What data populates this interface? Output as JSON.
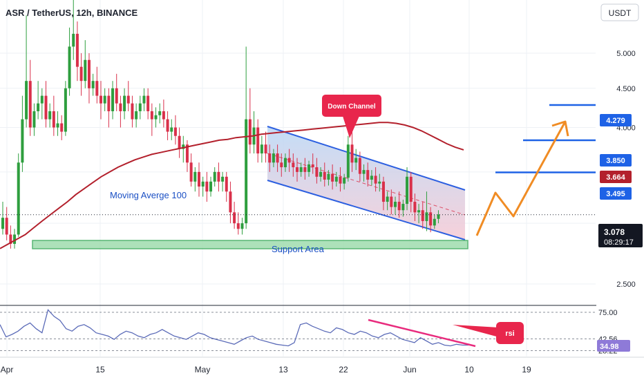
{
  "header": {
    "symbol_title": "ASR / TetherUS, 12h, BINANCE",
    "currency_button": "USDT"
  },
  "colors": {
    "background": "#ffffff",
    "grid": "#eef1f5",
    "candle_up": "#2e9e3e",
    "candle_down": "#d9304a",
    "ma_line": "#b3202c",
    "channel_line": "#2c5fe0",
    "channel_fill_top": "#b9d7f5",
    "channel_fill_bottom": "#f5c9d4",
    "support_fill": "#9fdcae",
    "support_border": "#3caa5c",
    "resistance_line": "#1e62e6",
    "projection": "#f08c24",
    "callout": "#e8264c",
    "rsi_line": "#5b6bb8",
    "rsi_trend": "#e82b7d"
  },
  "annotations": {
    "ma_label": "Moving Averge 100",
    "channel_label": "Down Channel",
    "support_label": "Support Area",
    "rsi_label": "rsi"
  },
  "price_axis": {
    "ticks": [
      "5.000",
      "4.500",
      "4.000",
      "2.500"
    ],
    "badges": {
      "r1": "4.279",
      "r2": "3.850",
      "ma": "3.664",
      "r3": "3.495",
      "last_price": "3.078",
      "countdown": "08:29:17"
    }
  },
  "rsi_axis": {
    "ticks": [
      "75.00",
      "42.56",
      "28.22"
    ],
    "current": "34.98"
  },
  "time_axis": {
    "ticks": [
      "Apr",
      "15",
      "May",
      "13",
      "22",
      "Jun",
      "10",
      "19"
    ]
  },
  "chart_data": {
    "type": "candlestick",
    "title": "ASR / TetherUS, 12h, BINANCE",
    "interval": "12h",
    "y_scale": "log",
    "ylim": [
      2.2,
      6.0
    ],
    "candles": [
      [
        2.95,
        3.2,
        3.05,
        2.9
      ],
      [
        3.05,
        3.15,
        2.9,
        2.85
      ],
      [
        2.9,
        2.98,
        2.82,
        2.78
      ],
      [
        2.82,
        2.95,
        2.9,
        2.78
      ],
      [
        2.9,
        3.7,
        3.6,
        2.88
      ],
      [
        3.6,
        4.4,
        4.1,
        3.5
      ],
      [
        4.1,
        5.6,
        4.6,
        4.0
      ],
      [
        4.6,
        4.9,
        4.0,
        3.9
      ],
      [
        4.0,
        4.3,
        4.2,
        3.9
      ],
      [
        4.2,
        4.6,
        4.3,
        4.1
      ],
      [
        4.3,
        4.5,
        4.4,
        4.1
      ],
      [
        4.4,
        4.6,
        4.1,
        4.0
      ],
      [
        4.1,
        4.3,
        4.2,
        4.0
      ],
      [
        4.2,
        4.4,
        4.0,
        3.9
      ],
      [
        4.0,
        4.2,
        4.05,
        3.9
      ],
      [
        4.05,
        4.15,
        3.95,
        3.85
      ],
      [
        3.95,
        4.6,
        4.5,
        3.9
      ],
      [
        4.5,
        5.4,
        5.1,
        4.4
      ],
      [
        5.1,
        6.0,
        5.3,
        4.9
      ],
      [
        5.3,
        5.5,
        4.8,
        4.6
      ],
      [
        4.8,
        5.0,
        4.6,
        4.4
      ],
      [
        4.6,
        5.2,
        4.9,
        4.5
      ],
      [
        4.9,
        5.0,
        4.5,
        4.3
      ],
      [
        4.5,
        4.7,
        4.6,
        4.4
      ],
      [
        4.6,
        4.8,
        4.4,
        4.3
      ],
      [
        4.4,
        4.6,
        4.3,
        4.1
      ],
      [
        4.3,
        4.5,
        4.4,
        4.2
      ],
      [
        4.4,
        4.5,
        4.2,
        4.0
      ],
      [
        4.2,
        4.6,
        4.5,
        4.1
      ],
      [
        4.5,
        4.7,
        4.3,
        4.2
      ],
      [
        4.3,
        4.4,
        4.2,
        4.0
      ],
      [
        4.2,
        4.5,
        4.4,
        4.1
      ],
      [
        4.4,
        4.6,
        4.3,
        4.2
      ],
      [
        4.3,
        4.4,
        4.1,
        4.0
      ],
      [
        4.1,
        4.3,
        4.2,
        4.0
      ],
      [
        4.2,
        4.4,
        4.3,
        4.1
      ],
      [
        4.3,
        4.5,
        4.4,
        4.2
      ],
      [
        4.4,
        4.5,
        4.2,
        4.1
      ],
      [
        4.2,
        4.3,
        4.1,
        3.9
      ],
      [
        4.1,
        4.25,
        4.15,
        4.0
      ],
      [
        4.15,
        4.3,
        4.2,
        4.05
      ],
      [
        4.2,
        4.35,
        4.1,
        4.0
      ],
      [
        4.1,
        4.2,
        3.95,
        3.85
      ],
      [
        3.95,
        4.1,
        4.0,
        3.85
      ],
      [
        4.0,
        4.15,
        3.9,
        3.8
      ],
      [
        3.9,
        4.0,
        3.75,
        3.65
      ],
      [
        3.75,
        3.9,
        3.8,
        3.6
      ],
      [
        3.8,
        3.85,
        3.6,
        3.5
      ],
      [
        3.6,
        3.7,
        3.4,
        3.35
      ],
      [
        3.4,
        3.55,
        3.5,
        3.3
      ],
      [
        3.5,
        3.6,
        3.35,
        3.25
      ],
      [
        3.35,
        3.45,
        3.4,
        3.25
      ],
      [
        3.4,
        3.5,
        3.3,
        3.2
      ],
      [
        3.3,
        3.45,
        3.4,
        3.25
      ],
      [
        3.4,
        3.55,
        3.5,
        3.35
      ],
      [
        3.5,
        3.6,
        3.4,
        3.3
      ],
      [
        3.4,
        3.5,
        3.45,
        3.3
      ],
      [
        3.45,
        3.5,
        3.3,
        3.2
      ],
      [
        3.3,
        3.4,
        3.1,
        3.0
      ],
      [
        3.1,
        3.2,
        3.0,
        2.95
      ],
      [
        3.0,
        3.1,
        2.95,
        2.9
      ],
      [
        2.95,
        3.05,
        3.0,
        2.9
      ],
      [
        3.0,
        5.1,
        4.1,
        2.95
      ],
      [
        4.1,
        4.5,
        3.8,
        3.7
      ],
      [
        3.8,
        4.2,
        4.0,
        3.7
      ],
      [
        4.0,
        4.1,
        3.7,
        3.6
      ],
      [
        3.7,
        3.9,
        3.8,
        3.6
      ],
      [
        3.8,
        3.95,
        3.7,
        3.6
      ],
      [
        3.7,
        3.8,
        3.6,
        3.5
      ],
      [
        3.6,
        3.75,
        3.7,
        3.55
      ],
      [
        3.7,
        3.8,
        3.6,
        3.5
      ],
      [
        3.6,
        3.7,
        3.55,
        3.45
      ],
      [
        3.55,
        3.7,
        3.65,
        3.5
      ],
      [
        3.65,
        3.75,
        3.6,
        3.5
      ],
      [
        3.6,
        3.7,
        3.55,
        3.45
      ],
      [
        3.55,
        3.65,
        3.5,
        3.4
      ],
      [
        3.5,
        3.6,
        3.55,
        3.45
      ],
      [
        3.55,
        3.65,
        3.5,
        3.42
      ],
      [
        3.5,
        3.62,
        3.58,
        3.45
      ],
      [
        3.58,
        3.7,
        3.55,
        3.48
      ],
      [
        3.55,
        3.65,
        3.45,
        3.38
      ],
      [
        3.45,
        3.55,
        3.5,
        3.4
      ],
      [
        3.5,
        3.6,
        3.42,
        3.35
      ],
      [
        3.42,
        3.52,
        3.48,
        3.36
      ],
      [
        3.48,
        3.58,
        3.4,
        3.32
      ],
      [
        3.4,
        3.5,
        3.45,
        3.35
      ],
      [
        3.45,
        3.55,
        3.38,
        3.3
      ],
      [
        3.38,
        3.48,
        3.44,
        3.32
      ],
      [
        3.44,
        3.9,
        3.8,
        3.4
      ],
      [
        3.8,
        4.05,
        3.6,
        3.5
      ],
      [
        3.6,
        3.75,
        3.65,
        3.52
      ],
      [
        3.65,
        3.72,
        3.48,
        3.4
      ],
      [
        3.48,
        3.58,
        3.52,
        3.4
      ],
      [
        3.52,
        3.6,
        3.42,
        3.35
      ],
      [
        3.42,
        3.52,
        3.46,
        3.36
      ],
      [
        3.46,
        3.55,
        3.38,
        3.3
      ],
      [
        3.38,
        3.48,
        3.4,
        3.3
      ],
      [
        3.4,
        3.45,
        3.2,
        3.12
      ],
      [
        3.2,
        3.3,
        3.25,
        3.12
      ],
      [
        3.25,
        3.32,
        3.15,
        3.08
      ],
      [
        3.15,
        3.25,
        3.2,
        3.08
      ],
      [
        3.2,
        3.3,
        3.12,
        3.05
      ],
      [
        3.12,
        3.22,
        3.18,
        3.06
      ],
      [
        3.18,
        3.55,
        3.45,
        3.12
      ],
      [
        3.45,
        3.5,
        3.2,
        3.1
      ],
      [
        3.2,
        3.28,
        3.1,
        3.02
      ],
      [
        3.1,
        3.18,
        3.12,
        3.0
      ],
      [
        3.12,
        3.2,
        3.02,
        2.95
      ],
      [
        3.02,
        3.3,
        3.1,
        2.93
      ],
      [
        3.1,
        3.15,
        2.98,
        2.92
      ],
      [
        2.98,
        3.08,
        3.04,
        2.95
      ],
      [
        3.04,
        3.12,
        3.08,
        3.0
      ]
    ],
    "moving_average_100": [
      2.78,
      2.82,
      2.86,
      2.9,
      2.96,
      3.02,
      3.08,
      3.14,
      3.2,
      3.27,
      3.33,
      3.39,
      3.45,
      3.5,
      3.55,
      3.59,
      3.63,
      3.66,
      3.69,
      3.71,
      3.73,
      3.75,
      3.77,
      3.79,
      3.81,
      3.83,
      3.85,
      3.86,
      3.88,
      3.89,
      3.9,
      3.92,
      3.93,
      3.94,
      3.95,
      3.96,
      3.97,
      3.98,
      3.99,
      4.0,
      4.01,
      4.02,
      4.03,
      4.04,
      4.05,
      4.06,
      4.06,
      4.05,
      4.03,
      4.0,
      3.96,
      3.91,
      3.86,
      3.81,
      3.77,
      3.74
    ],
    "resistance_levels": [
      4.279,
      3.85,
      3.495
    ],
    "ma_last": 3.664,
    "last_price": 3.078,
    "rsi": {
      "values": [
        60,
        45,
        48,
        52,
        58,
        62,
        55,
        50,
        78,
        70,
        65,
        55,
        52,
        58,
        60,
        56,
        50,
        48,
        46,
        42,
        48,
        52,
        50,
        46,
        44,
        48,
        50,
        54,
        50,
        46,
        44,
        42,
        46,
        50,
        48,
        44,
        42,
        40,
        38,
        36,
        40,
        44,
        46,
        42,
        40,
        38,
        36,
        35,
        34,
        38,
        60,
        62,
        58,
        55,
        52,
        50,
        56,
        54,
        50,
        48,
        52,
        50,
        46,
        44,
        48,
        50,
        46,
        42,
        40,
        38,
        44,
        40,
        36,
        38,
        35,
        34,
        36,
        35,
        34.98
      ],
      "ticks": [
        75.0,
        42.56,
        28.22
      ],
      "current": 34.98
    }
  }
}
